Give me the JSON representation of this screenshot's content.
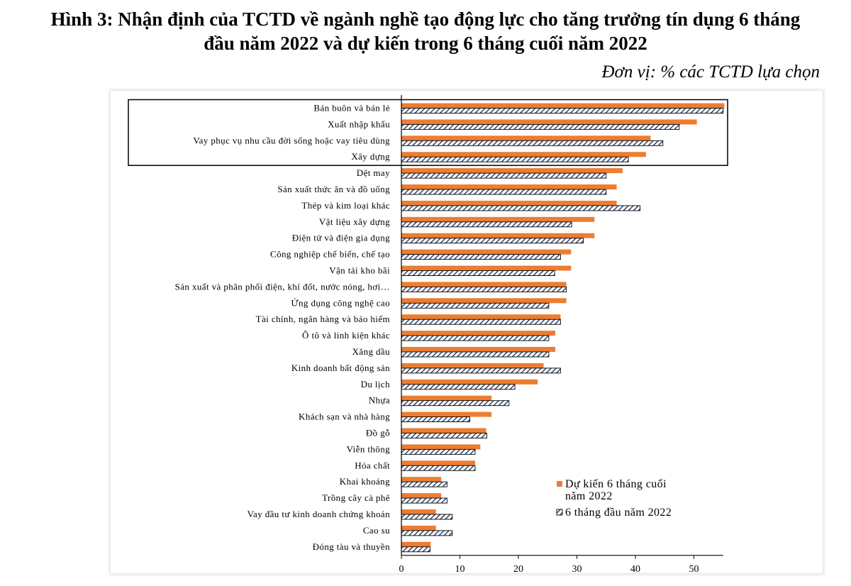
{
  "page": {
    "title_line1": "Hình 3: Nhận định của TCTD về ngành nghề tạo động lực cho tăng trưởng tín dụng 6 tháng",
    "title_line2": "đầu năm 2022 và dự kiến trong 6 tháng cuối năm 2022",
    "unit": "Đơn vị: % các TCTD lựa chọn"
  },
  "colors": {
    "orange": "#ed7d31",
    "navy": "#1f3864"
  },
  "chart_data": {
    "type": "bar",
    "orientation": "horizontal",
    "categories": [
      "Bán buôn và bán lẻ",
      "Xuất nhập khẩu",
      "Vay phục vụ nhu cầu đời sống hoặc vay tiêu dùng",
      "Xây dựng",
      "Dệt may",
      "Sản xuất thức ăn và đồ uống",
      "Thép và kim loại khác",
      "Vật liệu xây dựng",
      "Điện tử và điện gia dụng",
      "Công nghiệp  chế biến, chế tạo",
      "Vận tải kho bãi",
      "Sản xuất và phân phối điện, khí đốt, nước nóng, hơi…",
      "Ứng dụng công nghệ cao",
      "Tài chính, ngân hàng và bảo hiểm",
      "Ô tô và linh kiện khác",
      "Xăng dầu",
      "Kinh doanh bất động sản",
      "Du lịch",
      "Nhựa",
      "Khách sạn và nhà hàng",
      "Đồ gỗ",
      "Viễn thông",
      "Hóa chất",
      "Khai khoáng",
      "Trồng cây cà phê",
      "Vay đầu tư kinh  doanh chứng khoán",
      "Cao su",
      "Đóng tàu và thuyền"
    ],
    "series": [
      {
        "name": "Dự kiến 6 tháng cuối năm 2022",
        "legend_line1": "Dự kiến 6 tháng cuối",
        "legend_line2": "năm 2022",
        "values": [
          55.2,
          50.5,
          42.6,
          41.8,
          37.8,
          36.8,
          36.8,
          33.0,
          33.0,
          29.0,
          29.0,
          28.2,
          28.2,
          27.2,
          26.3,
          26.3,
          24.3,
          23.3,
          15.4,
          15.4,
          14.5,
          13.5,
          12.6,
          6.8,
          6.8,
          5.9,
          5.9,
          5.0
        ]
      },
      {
        "name": "6 tháng đầu năm 2022",
        "legend_line1": "6 tháng đầu năm 2022",
        "values": [
          55.0,
          47.5,
          44.7,
          38.8,
          35.0,
          35.0,
          40.8,
          29.1,
          31.1,
          27.2,
          26.2,
          28.2,
          25.2,
          27.2,
          25.2,
          25.2,
          27.2,
          19.4,
          18.4,
          11.7,
          14.6,
          12.6,
          12.6,
          7.8,
          7.8,
          8.7,
          8.7,
          4.9
        ]
      }
    ],
    "xlim": [
      0,
      55
    ],
    "xticks": [
      "0",
      "10",
      "20",
      "30",
      "40",
      "50"
    ],
    "highlight_box_rows": [
      0,
      3
    ],
    "legend_position": "bottom-right"
  }
}
